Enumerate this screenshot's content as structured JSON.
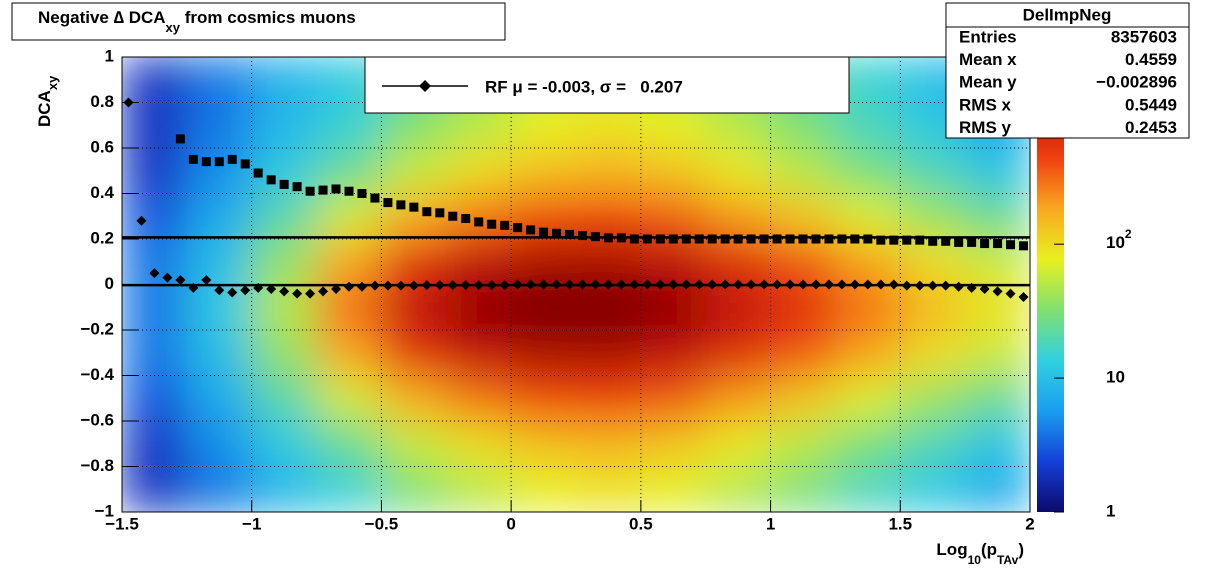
{
  "chart_data": {
    "type": "heatmap",
    "title": [
      "Negative ∆ DCA",
      "xy",
      " from cosmics muons"
    ],
    "x_label": [
      "Log",
      "10",
      "(p",
      "TAv",
      ")"
    ],
    "y_label": [
      "DCA",
      "xy"
    ],
    "xlim": [
      -1.5,
      2
    ],
    "ylim": [
      -1,
      1
    ],
    "zlim": [
      1,
      2500
    ],
    "log_z": true,
    "grid": true,
    "xticks": [
      {
        "value": -1.5,
        "label": "−1.5"
      },
      {
        "value": -1,
        "label": "−1"
      },
      {
        "value": -0.5,
        "label": "−0.5"
      },
      0,
      0.5,
      1,
      1.5,
      2
    ],
    "yticks": [
      {
        "value": -1,
        "label": "−1"
      },
      {
        "value": -0.8,
        "label": "−0.8"
      },
      {
        "value": -0.6,
        "label": "−0.6"
      },
      {
        "value": -0.4,
        "label": "−0.4"
      },
      {
        "value": -0.2,
        "label": "−0.2"
      },
      0,
      0.2,
      0.4,
      0.6,
      0.8,
      1
    ],
    "zticks": [
      1,
      10,
      {
        "value": 100,
        "label": [
          "10",
          "2"
        ]
      }
    ],
    "palette": [
      "#0c0a6b",
      "#1440d8",
      "#1a9ef0",
      "#30d0e0",
      "#80e070",
      "#e8f020",
      "#f8a820",
      "#f04010",
      "#c01008",
      "#780000"
    ],
    "xbins": [
      -1.5,
      -1.25,
      -1,
      -0.75,
      -0.5,
      -0.25,
      0,
      0.25,
      0.5,
      0.75,
      1,
      1.25,
      1.5,
      1.75,
      2
    ],
    "ybins": [
      -1,
      -0.8,
      -0.6,
      -0.4,
      -0.2,
      0,
      0.2,
      0.4,
      0.6,
      0.8,
      1
    ],
    "z": [
      [
        2,
        4,
        9,
        15,
        32,
        52,
        77,
        90,
        76,
        50,
        31,
        18,
        12,
        7
      ],
      [
        2,
        5,
        12,
        25,
        58,
        96,
        140,
        158,
        131,
        84,
        52,
        30,
        19,
        11
      ],
      [
        3,
        7,
        21,
        64,
        170,
        288,
        408,
        434,
        354,
        212,
        130,
        70,
        41,
        25
      ],
      [
        4,
        10,
        38,
        185,
        575,
        1020,
        1380,
        1400,
        1080,
        616,
        372,
        190,
        100,
        60
      ],
      [
        4,
        12,
        50,
        300,
        1000,
        1800,
        2400,
        2400,
        1800,
        1000,
        600,
        300,
        150,
        90
      ],
      [
        4,
        10,
        38,
        185,
        575,
        1020,
        1380,
        1400,
        1080,
        616,
        372,
        190,
        100,
        60
      ],
      [
        3,
        7,
        21,
        64,
        170,
        288,
        408,
        434,
        354,
        212,
        130,
        70,
        41,
        25
      ],
      [
        2,
        5,
        12,
        25,
        58,
        96,
        140,
        158,
        131,
        84,
        52,
        30,
        19,
        11
      ],
      [
        2,
        4,
        9,
        15,
        32,
        52,
        77,
        90,
        76,
        50,
        31,
        18,
        12,
        7
      ],
      [
        2,
        4,
        8,
        12,
        25,
        40,
        60,
        70,
        60,
        40,
        25,
        15,
        10,
        6
      ]
    ],
    "x": [
      -1.475,
      -1.425,
      -1.375,
      -1.325,
      -1.275,
      -1.225,
      -1.175,
      -1.125,
      -1.075,
      -1.025,
      -0.975,
      -0.925,
      -0.875,
      -0.825,
      -0.775,
      -0.725,
      -0.675,
      -0.625,
      -0.575,
      -0.525,
      -0.475,
      -0.425,
      -0.375,
      -0.325,
      -0.275,
      -0.225,
      -0.175,
      -0.125,
      -0.075,
      -0.025,
      0.025,
      0.075,
      0.125,
      0.175,
      0.225,
      0.275,
      0.325,
      0.375,
      0.425,
      0.475,
      0.525,
      0.575,
      0.625,
      0.675,
      0.725,
      0.775,
      0.825,
      0.875,
      0.925,
      0.975,
      1.025,
      1.075,
      1.125,
      1.175,
      1.225,
      1.275,
      1.325,
      1.375,
      1.425,
      1.475,
      1.525,
      1.575,
      1.625,
      1.675,
      1.725,
      1.775,
      1.825,
      1.875,
      1.925,
      1.975
    ],
    "series": [
      {
        "marker": "diamond",
        "color": "#000000",
        "values": [
          0.8,
          0.28,
          0.05,
          0.03,
          0.02,
          -0.015,
          0.02,
          -0.025,
          -0.035,
          -0.025,
          -0.015,
          -0.02,
          -0.03,
          -0.04,
          -0.04,
          -0.03,
          -0.02,
          -0.01,
          -0.01,
          -0.005,
          -0.005,
          -0.005,
          -0.005,
          -0.003,
          -0.003,
          -0.003,
          -0.003,
          -0.003,
          -0.003,
          -0.003,
          0,
          0,
          0,
          0,
          0,
          0,
          0,
          0,
          0,
          0,
          0,
          0,
          0,
          0,
          0,
          0,
          0,
          0,
          0,
          0,
          0,
          0,
          0,
          0,
          0,
          0,
          0,
          0,
          0,
          0,
          -0.005,
          -0.005,
          -0.005,
          -0.005,
          -0.01,
          -0.015,
          -0.02,
          -0.03,
          -0.04,
          -0.055
        ]
      },
      {
        "marker": "square",
        "color": "#000000",
        "values": [
          null,
          null,
          null,
          null,
          0.64,
          0.55,
          0.54,
          0.54,
          0.55,
          0.53,
          0.49,
          0.46,
          0.44,
          0.43,
          0.41,
          0.415,
          0.42,
          0.41,
          0.4,
          0.38,
          0.36,
          0.35,
          0.34,
          0.32,
          0.315,
          0.3,
          0.29,
          0.275,
          0.265,
          0.26,
          0.25,
          0.24,
          0.23,
          0.225,
          0.22,
          0.215,
          0.21,
          0.205,
          0.205,
          0.2,
          0.2,
          0.2,
          0.2,
          0.2,
          0.2,
          0.2,
          0.2,
          0.2,
          0.2,
          0.2,
          0.2,
          0.2,
          0.2,
          0.2,
          0.2,
          0.2,
          0.2,
          0.2,
          0.195,
          0.195,
          0.195,
          0.195,
          0.19,
          0.19,
          0.185,
          0.185,
          0.18,
          0.18,
          0.175,
          0.17
        ]
      }
    ],
    "legend": {
      "label": "RF μ = -0.003, σ =   0.207",
      "mu": -0.003,
      "sigma": 0.207
    },
    "stats": {
      "name": "DelImpNeg",
      "rows": [
        [
          "Entries",
          "8357603"
        ],
        [
          "Mean x",
          "0.4559"
        ],
        [
          "Mean y",
          "−0.002896"
        ],
        [
          "RMS x",
          "0.5449"
        ],
        [
          "RMS y",
          "0.2453"
        ]
      ]
    }
  }
}
